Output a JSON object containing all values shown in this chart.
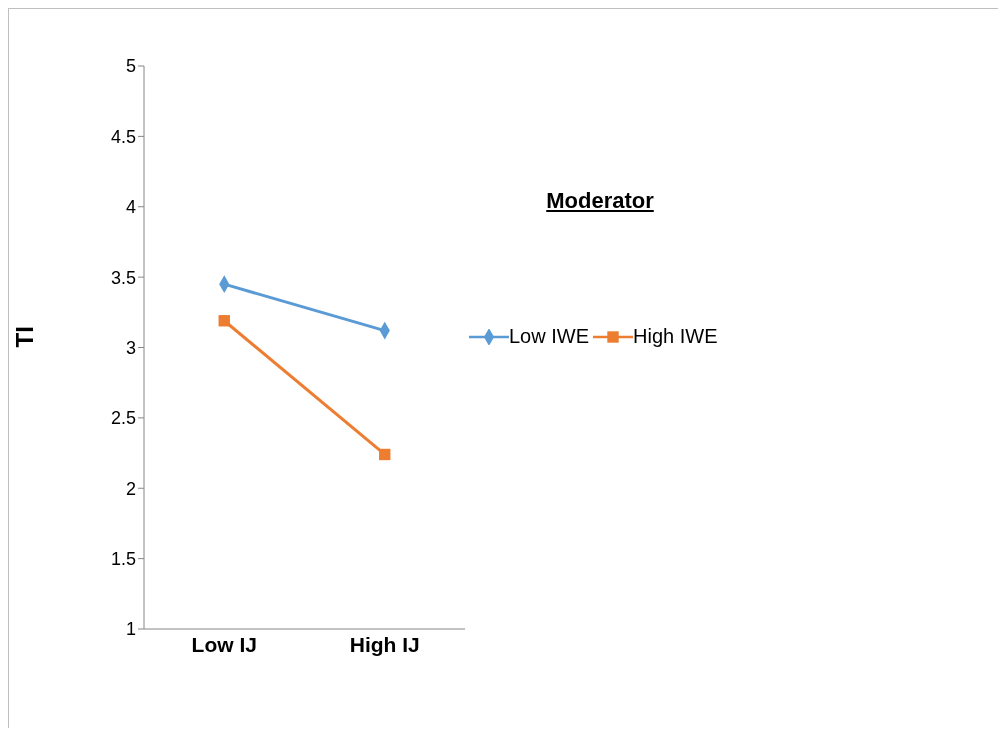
{
  "chart_data": {
    "type": "line",
    "ylabel": "TI",
    "legend_title": "Moderator",
    "categories": [
      "Low IJ",
      "High IJ"
    ],
    "series": [
      {
        "name": "Low IWE",
        "color": "#5b9bd5",
        "marker": "diamond",
        "values": [
          3.45,
          3.12
        ]
      },
      {
        "name": "High IWE",
        "color": "#ed7d31",
        "marker": "square",
        "values": [
          3.19,
          2.24
        ]
      }
    ],
    "ylim": [
      1,
      5
    ],
    "yticks": [
      1,
      1.5,
      2,
      2.5,
      3,
      3.5,
      4,
      4.5,
      5
    ],
    "grid": false,
    "legend": "right"
  }
}
